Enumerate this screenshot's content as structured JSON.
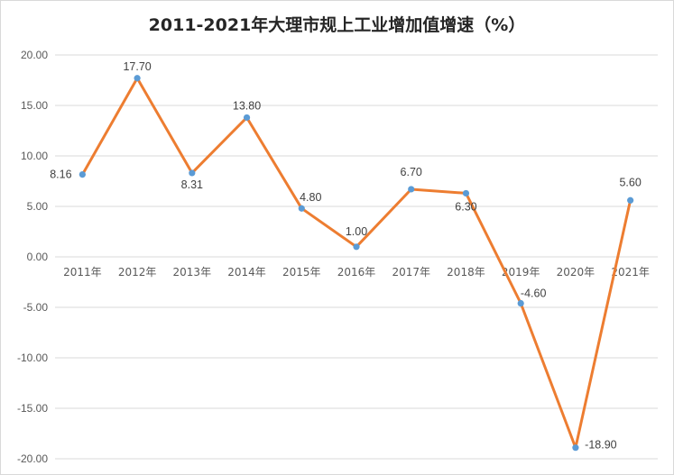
{
  "chart_data": {
    "type": "line",
    "title": "2011-2021年大理市规上工业增加值增速（%）",
    "categories": [
      "2011年",
      "2012年",
      "2013年",
      "2014年",
      "2015年",
      "2016年",
      "2017年",
      "2018年",
      "2019年",
      "2020年",
      "2021年"
    ],
    "series": [
      {
        "values": [
          8.16,
          17.7,
          8.31,
          13.8,
          4.8,
          1.0,
          6.7,
          6.3,
          -4.6,
          -18.9,
          5.6
        ]
      }
    ],
    "data_labels": [
      "8.16",
      "17.70",
      "8.31",
      "13.80",
      "4.80",
      "1.00",
      "6.70",
      "6.30",
      "-4.60",
      "-18.90",
      "5.60"
    ],
    "y_ticks": [
      "20.00",
      "15.00",
      "10.00",
      "5.00",
      "0.00",
      "-5.00",
      "-10.00",
      "-15.00",
      "-20.00"
    ],
    "ylim": [
      -20,
      20
    ],
    "grid": "horizontal",
    "legend": "none",
    "colors": {
      "line": "#ED7D31",
      "marker": "#5B9BD5",
      "grid": "#d9d9d9",
      "text": "#595959"
    }
  }
}
